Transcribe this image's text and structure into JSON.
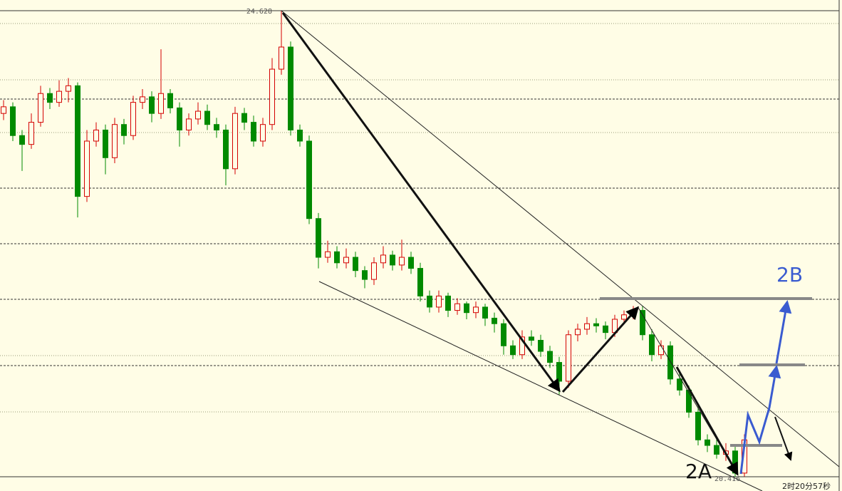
{
  "chart_data": {
    "type": "candlestick",
    "ylim": [
      20.288,
      24.725
    ],
    "high_label": 24.628,
    "low_label": 20.416,
    "annotations": [
      "2A",
      "2B"
    ],
    "countdown": "2时20分57秒",
    "up_color": "#d40000",
    "down_color": "#008a00",
    "candles": [
      [
        23.7,
        23.82,
        23.64,
        23.76
      ],
      [
        23.76,
        23.8,
        23.45,
        23.5
      ],
      [
        23.5,
        23.55,
        23.18,
        23.42
      ],
      [
        23.42,
        23.7,
        23.38,
        23.62
      ],
      [
        23.62,
        23.95,
        23.58,
        23.88
      ],
      [
        23.88,
        23.93,
        23.74,
        23.8
      ],
      [
        23.8,
        24.0,
        23.76,
        23.9
      ],
      [
        23.9,
        24.02,
        23.8,
        23.95
      ],
      [
        23.95,
        23.98,
        22.76,
        22.95
      ],
      [
        22.95,
        23.55,
        22.9,
        23.45
      ],
      [
        23.45,
        23.62,
        23.4,
        23.55
      ],
      [
        23.55,
        23.6,
        23.15,
        23.3
      ],
      [
        23.3,
        23.66,
        23.25,
        23.6
      ],
      [
        23.6,
        23.65,
        23.42,
        23.5
      ],
      [
        23.5,
        23.86,
        23.46,
        23.8
      ],
      [
        23.8,
        23.92,
        23.74,
        23.85
      ],
      [
        23.85,
        23.9,
        23.62,
        23.7
      ],
      [
        23.7,
        24.28,
        23.65,
        23.88
      ],
      [
        23.88,
        23.92,
        23.7,
        23.75
      ],
      [
        23.75,
        23.8,
        23.4,
        23.55
      ],
      [
        23.55,
        23.7,
        23.5,
        23.65
      ],
      [
        23.65,
        23.8,
        23.6,
        23.72
      ],
      [
        23.72,
        23.78,
        23.55,
        23.6
      ],
      [
        23.6,
        23.66,
        23.48,
        23.55
      ],
      [
        23.55,
        23.6,
        23.05,
        23.2
      ],
      [
        23.2,
        23.76,
        23.15,
        23.7
      ],
      [
        23.7,
        23.75,
        23.55,
        23.62
      ],
      [
        23.62,
        23.68,
        23.4,
        23.45
      ],
      [
        23.45,
        23.66,
        23.4,
        23.6
      ],
      [
        23.6,
        24.2,
        23.55,
        24.1
      ],
      [
        24.1,
        24.628,
        24.05,
        24.3
      ],
      [
        24.3,
        24.35,
        23.5,
        23.55
      ],
      [
        23.55,
        23.6,
        23.4,
        23.45
      ],
      [
        23.45,
        23.5,
        22.7,
        22.75
      ],
      [
        22.75,
        22.8,
        22.3,
        22.4
      ],
      [
        22.4,
        22.55,
        22.35,
        22.45
      ],
      [
        22.45,
        22.5,
        22.3,
        22.35
      ],
      [
        22.35,
        22.48,
        22.3,
        22.4
      ],
      [
        22.4,
        22.45,
        22.22,
        22.28
      ],
      [
        22.28,
        22.32,
        22.12,
        22.2
      ],
      [
        22.2,
        22.4,
        22.15,
        22.35
      ],
      [
        22.35,
        22.5,
        22.3,
        22.42
      ],
      [
        22.42,
        22.46,
        22.28,
        22.33
      ],
      [
        22.33,
        22.56,
        22.28,
        22.4
      ],
      [
        22.4,
        22.45,
        22.25,
        22.3
      ],
      [
        22.3,
        22.35,
        22.0,
        22.05
      ],
      [
        22.05,
        22.1,
        21.9,
        21.95
      ],
      [
        21.95,
        22.1,
        21.9,
        22.05
      ],
      [
        22.05,
        22.08,
        21.86,
        21.92
      ],
      [
        21.92,
        22.03,
        21.88,
        21.98
      ],
      [
        21.98,
        22.0,
        21.84,
        21.9
      ],
      [
        21.9,
        22.0,
        21.85,
        21.95
      ],
      [
        21.95,
        21.98,
        21.78,
        21.85
      ],
      [
        21.85,
        21.9,
        21.72,
        21.8
      ],
      [
        21.8,
        21.84,
        21.52,
        21.6
      ],
      [
        21.6,
        21.65,
        21.48,
        21.52
      ],
      [
        21.52,
        21.74,
        21.48,
        21.68
      ],
      [
        21.68,
        21.74,
        21.6,
        21.65
      ],
      [
        21.65,
        21.7,
        21.5,
        21.55
      ],
      [
        21.55,
        21.6,
        21.4,
        21.45
      ],
      [
        21.45,
        21.5,
        21.16,
        21.28
      ],
      [
        21.28,
        21.74,
        21.22,
        21.7
      ],
      [
        21.7,
        21.8,
        21.64,
        21.75
      ],
      [
        21.75,
        21.86,
        21.7,
        21.8
      ],
      [
        21.8,
        21.85,
        21.72,
        21.78
      ],
      [
        21.78,
        21.82,
        21.66,
        21.72
      ],
      [
        21.72,
        21.88,
        21.68,
        21.84
      ],
      [
        21.84,
        21.92,
        21.8,
        21.88
      ],
      [
        21.88,
        21.96,
        21.84,
        21.92
      ],
      [
        21.92,
        21.96,
        21.65,
        21.7
      ],
      [
        21.7,
        21.75,
        21.46,
        21.52
      ],
      [
        21.52,
        21.65,
        21.48,
        21.6
      ],
      [
        21.6,
        21.64,
        21.25,
        21.3
      ],
      [
        21.3,
        21.36,
        21.15,
        21.2
      ],
      [
        21.2,
        21.24,
        20.95,
        21.0
      ],
      [
        21.0,
        21.05,
        20.7,
        20.75
      ],
      [
        20.75,
        20.8,
        20.64,
        20.7
      ],
      [
        20.7,
        20.76,
        20.58,
        20.62
      ],
      [
        20.62,
        20.72,
        20.56,
        20.65
      ],
      [
        20.65,
        20.7,
        20.416,
        20.45
      ],
      [
        20.45,
        20.8,
        20.42,
        20.75
      ]
    ]
  }
}
